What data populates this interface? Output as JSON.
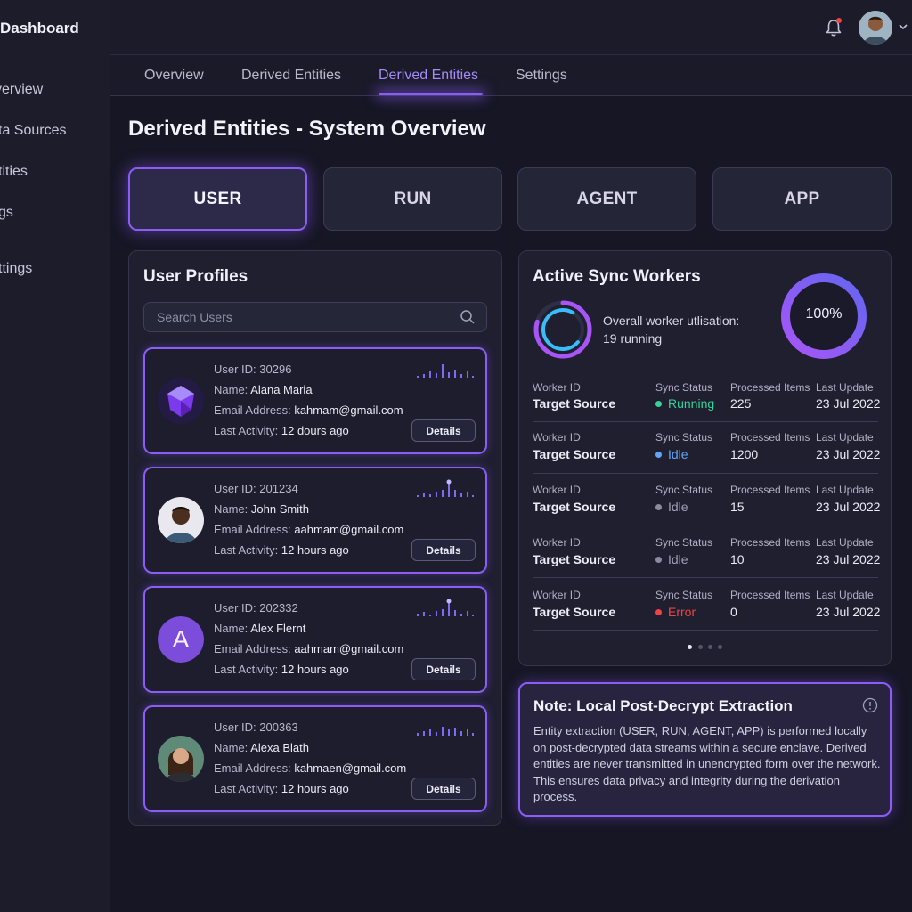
{
  "sidebar": {
    "brand": "Dashboard",
    "items": [
      {
        "label": "verview"
      },
      {
        "label": "ta Sources"
      },
      {
        "label": "tities"
      },
      {
        "label": "gs"
      },
      {
        "label": "ttings"
      }
    ]
  },
  "header": {
    "notification_icon": "bell-icon",
    "avatar": "user-avatar",
    "accent_color": "#8b5cf6",
    "alert_color": "#ef4444"
  },
  "tabs": [
    {
      "label": "Overview"
    },
    {
      "label": "Derived Entities"
    },
    {
      "label": "Derived Entities",
      "active": true
    },
    {
      "label": "Settings"
    }
  ],
  "page": {
    "title": "Derived Entities - System Overview"
  },
  "entities": [
    {
      "label": "USER",
      "active": true
    },
    {
      "label": "RUN"
    },
    {
      "label": "AGENT"
    },
    {
      "label": "APP"
    }
  ],
  "user_profiles": {
    "title": "User Profiles",
    "search_placeholder": "Search Users",
    "details_label": "Details",
    "labels": {
      "id": "User ID: ",
      "name": "Name: ",
      "email": "Email Address: ",
      "activity": "Last Activity: "
    },
    "users": [
      {
        "id": "30296",
        "name": "Alana Maria",
        "email": "kahmam@gmail.com",
        "activity": "12 dours ago",
        "avatar": "hexagon-logo-avatar"
      },
      {
        "id": "201234",
        "name": "John Smith",
        "email": "aahmam@gmail.com",
        "activity": "12 hours ago",
        "avatar": "photo-avatar"
      },
      {
        "id": "202332",
        "name": "Alex Flernt",
        "email": "aahmam@gmail.com",
        "activity": "12 hours ago",
        "avatar": "letter-avatar",
        "initial": "A"
      },
      {
        "id": "200363",
        "name": "Alexa Blath",
        "email": "kahmaen@gmail.com",
        "activity": "12 hours ago",
        "avatar": "photo-avatar"
      }
    ]
  },
  "workers": {
    "title": "Active Sync Workers",
    "utilisation_label": "Overall worker utlisation:",
    "running_label": "19 running",
    "percent_label": "100%",
    "utilisation": 1.0,
    "headers": {
      "worker": "Worker ID",
      "status": "Sync Status",
      "processed": "Processed Items",
      "updated": "Last Update"
    },
    "rows": [
      {
        "worker": "Target Source",
        "status": "Running",
        "status_color": "#34d399",
        "processed": "225",
        "updated": "23 Jul 2022"
      },
      {
        "worker": "Target Source",
        "status": "Idle",
        "status_color": "#60a5fa",
        "processed": "1200",
        "updated": "23 Jul 2022"
      },
      {
        "worker": "Target Source",
        "status": "Idle",
        "status_color": "#8a8aa0",
        "processed": "15",
        "updated": "23 Jul 2022"
      },
      {
        "worker": "Target Source",
        "status": "Idle",
        "status_color": "#8a8aa0",
        "processed": "10",
        "updated": "23 Jul 2022"
      },
      {
        "worker": "Target Source",
        "status": "Error",
        "status_color": "#ef4444",
        "processed": "0",
        "updated": "23 Jul 2022"
      }
    ],
    "pages": 4,
    "current_page": 1
  },
  "note": {
    "title": "Note: Local Post-Decrypt Extraction",
    "body": "Entity extraction (USER, RUN, AGENT, APP) is performed locally on post-decrypted data streams within a secure enclave. Derived entities are never transmitted in unencrypted form over the network. This ensures data privacy and integrity during the derivation process.",
    "icon": "info-icon"
  }
}
